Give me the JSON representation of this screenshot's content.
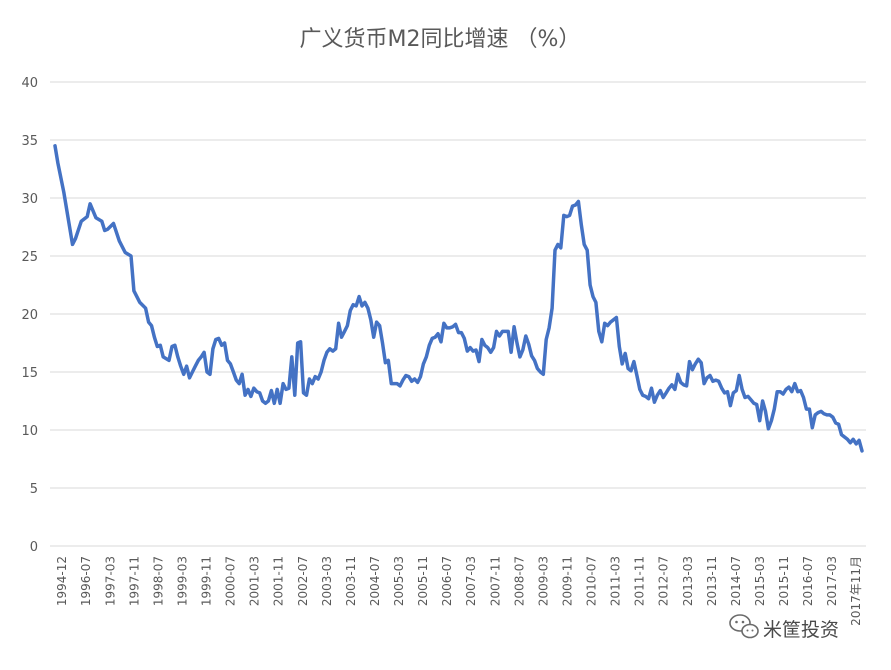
{
  "chart_data": {
    "type": "line",
    "title": "广义货币M2同比增速 （%）",
    "xlabel": "",
    "ylabel": "",
    "ylim": [
      0,
      40
    ],
    "yticks": [
      0,
      5,
      10,
      15,
      20,
      25,
      30,
      35,
      40
    ],
    "grid": "horizontal",
    "legend": "none",
    "line_color": "#4472C4",
    "x_tick_labels": [
      "1994-12",
      "1996-07",
      "1997-03",
      "1997-11",
      "1998-07",
      "1999-03",
      "1999-11",
      "2000-07",
      "2001-03",
      "2001-11",
      "2002-07",
      "2003-03",
      "2003-11",
      "2004-07",
      "2005-03",
      "2005-11",
      "2006-07",
      "2007-03",
      "2007-11",
      "2008-07",
      "2009-03",
      "2009-11",
      "2010-07",
      "2011-03",
      "2011-11",
      "2012-07",
      "2013-03",
      "2013-11",
      "2014-07",
      "2015-03",
      "2015-11",
      "2016-07",
      "2017-03",
      "2017年11月"
    ],
    "series": [
      {
        "points": [
          [
            "1994-12",
            34.5
          ],
          [
            "1995-01",
            33.0
          ],
          [
            "1995-03",
            30.5
          ],
          [
            "1995-05",
            27.5
          ],
          [
            "1995-06",
            26.0
          ],
          [
            "1995-07",
            26.5
          ],
          [
            "1995-09",
            28.0
          ],
          [
            "1995-11",
            28.4
          ],
          [
            "1995-12",
            29.5
          ],
          [
            "1996-02",
            28.3
          ],
          [
            "1996-04",
            28.0
          ],
          [
            "1996-05",
            27.2
          ],
          [
            "1996-06",
            27.3
          ],
          [
            "1996-08",
            27.8
          ],
          [
            "1996-10",
            26.3
          ],
          [
            "1996-12",
            25.3
          ],
          [
            "1997-02",
            25.0
          ],
          [
            "1997-03",
            22.0
          ],
          [
            "1997-05",
            21.0
          ],
          [
            "1997-07",
            20.5
          ],
          [
            "1997-08",
            19.3
          ],
          [
            "1997-09",
            19.0
          ],
          [
            "1997-10",
            18.0
          ],
          [
            "1997-11",
            17.2
          ],
          [
            "1997-12",
            17.3
          ],
          [
            "1998-01",
            16.3
          ],
          [
            "1998-03",
            16.0
          ],
          [
            "1998-04",
            17.2
          ],
          [
            "1998-05",
            17.3
          ],
          [
            "1998-06",
            16.3
          ],
          [
            "1998-07",
            15.5
          ],
          [
            "1998-08",
            14.8
          ],
          [
            "1998-09",
            15.5
          ],
          [
            "1998-10",
            14.5
          ],
          [
            "1998-11",
            15.0
          ],
          [
            "1998-12",
            15.5
          ],
          [
            "1999-01",
            16.0
          ],
          [
            "1999-02",
            16.3
          ],
          [
            "1999-03",
            16.7
          ],
          [
            "1999-04",
            15.0
          ],
          [
            "1999-05",
            14.8
          ],
          [
            "1999-06",
            17.0
          ],
          [
            "1999-07",
            17.8
          ],
          [
            "1999-08",
            17.9
          ],
          [
            "1999-09",
            17.3
          ],
          [
            "1999-10",
            17.5
          ],
          [
            "1999-11",
            16.0
          ],
          [
            "1999-12",
            15.7
          ],
          [
            "2000-01",
            15.0
          ],
          [
            "2000-02",
            14.3
          ],
          [
            "2000-03",
            14.0
          ],
          [
            "2000-04",
            14.8
          ],
          [
            "2000-05",
            13.0
          ],
          [
            "2000-06",
            13.5
          ],
          [
            "2000-07",
            12.9
          ],
          [
            "2000-08",
            13.6
          ],
          [
            "2000-09",
            13.3
          ],
          [
            "2000-10",
            13.2
          ],
          [
            "2000-11",
            12.5
          ],
          [
            "2000-12",
            12.3
          ],
          [
            "2001-01",
            12.5
          ],
          [
            "2001-02",
            13.4
          ],
          [
            "2001-03",
            12.3
          ],
          [
            "2001-04",
            13.5
          ],
          [
            "2001-05",
            12.3
          ],
          [
            "2001-06",
            14.0
          ],
          [
            "2001-07",
            13.5
          ],
          [
            "2001-08",
            13.6
          ],
          [
            "2001-09",
            16.3
          ],
          [
            "2001-10",
            13.0
          ],
          [
            "2001-11",
            17.5
          ],
          [
            "2001-12",
            17.6
          ],
          [
            "2002-01",
            13.2
          ],
          [
            "2002-02",
            13.0
          ],
          [
            "2002-03",
            14.4
          ],
          [
            "2002-04",
            14.0
          ],
          [
            "2002-05",
            14.6
          ],
          [
            "2002-06",
            14.4
          ],
          [
            "2002-07",
            15.0
          ],
          [
            "2002-08",
            16.0
          ],
          [
            "2002-09",
            16.7
          ],
          [
            "2002-10",
            17.0
          ],
          [
            "2002-11",
            16.8
          ],
          [
            "2002-12",
            17.0
          ],
          [
            "2003-01",
            19.2
          ],
          [
            "2003-02",
            18.0
          ],
          [
            "2003-03",
            18.5
          ],
          [
            "2003-04",
            19.0
          ],
          [
            "2003-05",
            20.3
          ],
          [
            "2003-06",
            20.8
          ],
          [
            "2003-07",
            20.7
          ],
          [
            "2003-08",
            21.5
          ],
          [
            "2003-09",
            20.7
          ],
          [
            "2003-10",
            21.0
          ],
          [
            "2003-11",
            20.5
          ],
          [
            "2003-12",
            19.5
          ],
          [
            "2004-01",
            18.0
          ],
          [
            "2004-02",
            19.3
          ],
          [
            "2004-03",
            19.0
          ],
          [
            "2004-04",
            17.5
          ],
          [
            "2004-05",
            15.8
          ],
          [
            "2004-06",
            16.0
          ],
          [
            "2004-07",
            14.0
          ],
          [
            "2004-08",
            14.0
          ],
          [
            "2004-09",
            14.0
          ],
          [
            "2004-10",
            13.8
          ],
          [
            "2004-11",
            14.3
          ],
          [
            "2004-12",
            14.7
          ],
          [
            "2005-01",
            14.6
          ],
          [
            "2005-02",
            14.2
          ],
          [
            "2005-03",
            14.4
          ],
          [
            "2005-04",
            14.1
          ],
          [
            "2005-05",
            14.6
          ],
          [
            "2005-06",
            15.7
          ],
          [
            "2005-07",
            16.3
          ],
          [
            "2005-08",
            17.3
          ],
          [
            "2005-09",
            17.9
          ],
          [
            "2005-10",
            18.0
          ],
          [
            "2005-11",
            18.3
          ],
          [
            "2005-12",
            17.6
          ],
          [
            "2006-01",
            19.2
          ],
          [
            "2006-02",
            18.8
          ],
          [
            "2006-03",
            18.8
          ],
          [
            "2006-04",
            18.9
          ],
          [
            "2006-05",
            19.1
          ],
          [
            "2006-06",
            18.4
          ],
          [
            "2006-07",
            18.4
          ],
          [
            "2006-08",
            17.9
          ],
          [
            "2006-09",
            16.8
          ],
          [
            "2006-10",
            17.1
          ],
          [
            "2006-11",
            16.8
          ],
          [
            "2006-12",
            16.9
          ],
          [
            "2007-01",
            15.9
          ],
          [
            "2007-02",
            17.8
          ],
          [
            "2007-03",
            17.3
          ],
          [
            "2007-04",
            17.1
          ],
          [
            "2007-05",
            16.7
          ],
          [
            "2007-06",
            17.1
          ],
          [
            "2007-07",
            18.5
          ],
          [
            "2007-08",
            18.1
          ],
          [
            "2007-09",
            18.5
          ],
          [
            "2007-10",
            18.5
          ],
          [
            "2007-11",
            18.5
          ],
          [
            "2007-12",
            16.7
          ],
          [
            "2008-01",
            18.9
          ],
          [
            "2008-02",
            17.5
          ],
          [
            "2008-03",
            16.3
          ],
          [
            "2008-04",
            16.9
          ],
          [
            "2008-05",
            18.1
          ],
          [
            "2008-06",
            17.4
          ],
          [
            "2008-07",
            16.4
          ],
          [
            "2008-08",
            16.0
          ],
          [
            "2008-09",
            15.3
          ],
          [
            "2008-10",
            15.0
          ],
          [
            "2008-11",
            14.8
          ],
          [
            "2008-12",
            17.8
          ],
          [
            "2009-01",
            18.8
          ],
          [
            "2009-02",
            20.5
          ],
          [
            "2009-03",
            25.5
          ],
          [
            "2009-04",
            26.0
          ],
          [
            "2009-05",
            25.7
          ],
          [
            "2009-06",
            28.5
          ],
          [
            "2009-07",
            28.4
          ],
          [
            "2009-08",
            28.5
          ],
          [
            "2009-09",
            29.3
          ],
          [
            "2009-10",
            29.4
          ],
          [
            "2009-11",
            29.7
          ],
          [
            "2009-12",
            27.7
          ],
          [
            "2010-01",
            26.0
          ],
          [
            "2010-02",
            25.5
          ],
          [
            "2010-03",
            22.5
          ],
          [
            "2010-04",
            21.5
          ],
          [
            "2010-05",
            21.0
          ],
          [
            "2010-06",
            18.5
          ],
          [
            "2010-07",
            17.6
          ],
          [
            "2010-08",
            19.2
          ],
          [
            "2010-09",
            19.0
          ],
          [
            "2010-10",
            19.3
          ],
          [
            "2010-11",
            19.5
          ],
          [
            "2010-12",
            19.7
          ],
          [
            "2011-01",
            17.2
          ],
          [
            "2011-02",
            15.7
          ],
          [
            "2011-03",
            16.6
          ],
          [
            "2011-04",
            15.3
          ],
          [
            "2011-05",
            15.1
          ],
          [
            "2011-06",
            15.9
          ],
          [
            "2011-07",
            14.7
          ],
          [
            "2011-08",
            13.5
          ],
          [
            "2011-09",
            13.0
          ],
          [
            "2011-10",
            12.9
          ],
          [
            "2011-11",
            12.7
          ],
          [
            "2011-12",
            13.6
          ],
          [
            "2012-01",
            12.4
          ],
          [
            "2012-02",
            13.0
          ],
          [
            "2012-03",
            13.4
          ],
          [
            "2012-04",
            12.8
          ],
          [
            "2012-05",
            13.2
          ],
          [
            "2012-06",
            13.6
          ],
          [
            "2012-07",
            13.9
          ],
          [
            "2012-08",
            13.5
          ],
          [
            "2012-09",
            14.8
          ],
          [
            "2012-10",
            14.1
          ],
          [
            "2012-11",
            13.9
          ],
          [
            "2012-12",
            13.8
          ],
          [
            "2013-01",
            15.9
          ],
          [
            "2013-02",
            15.2
          ],
          [
            "2013-03",
            15.7
          ],
          [
            "2013-04",
            16.1
          ],
          [
            "2013-05",
            15.8
          ],
          [
            "2013-06",
            14.0
          ],
          [
            "2013-07",
            14.5
          ],
          [
            "2013-08",
            14.7
          ],
          [
            "2013-09",
            14.2
          ],
          [
            "2013-10",
            14.3
          ],
          [
            "2013-11",
            14.2
          ],
          [
            "2013-12",
            13.6
          ],
          [
            "2014-01",
            13.2
          ],
          [
            "2014-02",
            13.3
          ],
          [
            "2014-03",
            12.1
          ],
          [
            "2014-04",
            13.2
          ],
          [
            "2014-05",
            13.4
          ],
          [
            "2014-06",
            14.7
          ],
          [
            "2014-07",
            13.5
          ],
          [
            "2014-08",
            12.8
          ],
          [
            "2014-09",
            12.9
          ],
          [
            "2014-10",
            12.6
          ],
          [
            "2014-11",
            12.3
          ],
          [
            "2014-12",
            12.2
          ],
          [
            "2015-01",
            10.8
          ],
          [
            "2015-02",
            12.5
          ],
          [
            "2015-03",
            11.6
          ],
          [
            "2015-04",
            10.1
          ],
          [
            "2015-05",
            10.8
          ],
          [
            "2015-06",
            11.8
          ],
          [
            "2015-07",
            13.3
          ],
          [
            "2015-08",
            13.3
          ],
          [
            "2015-09",
            13.1
          ],
          [
            "2015-10",
            13.5
          ],
          [
            "2015-11",
            13.7
          ],
          [
            "2015-12",
            13.3
          ],
          [
            "2016-01",
            14.0
          ],
          [
            "2016-02",
            13.3
          ],
          [
            "2016-03",
            13.4
          ],
          [
            "2016-04",
            12.8
          ],
          [
            "2016-05",
            11.8
          ],
          [
            "2016-06",
            11.8
          ],
          [
            "2016-07",
            10.2
          ],
          [
            "2016-08",
            11.3
          ],
          [
            "2016-09",
            11.5
          ],
          [
            "2016-10",
            11.6
          ],
          [
            "2016-11",
            11.4
          ],
          [
            "2016-12",
            11.3
          ],
          [
            "2017-01",
            11.3
          ],
          [
            "2017-02",
            11.1
          ],
          [
            "2017-03",
            10.6
          ],
          [
            "2017-04",
            10.5
          ],
          [
            "2017-05",
            9.6
          ],
          [
            "2017-06",
            9.4
          ],
          [
            "2017-07",
            9.2
          ],
          [
            "2017-08",
            8.9
          ],
          [
            "2017-09",
            9.2
          ],
          [
            "2017-10",
            8.8
          ],
          [
            "2017-11",
            9.1
          ],
          [
            "2017-12",
            8.2
          ]
        ]
      }
    ]
  },
  "watermark": {
    "brand_text": "米筐投资",
    "icon": "wechat-icon"
  }
}
